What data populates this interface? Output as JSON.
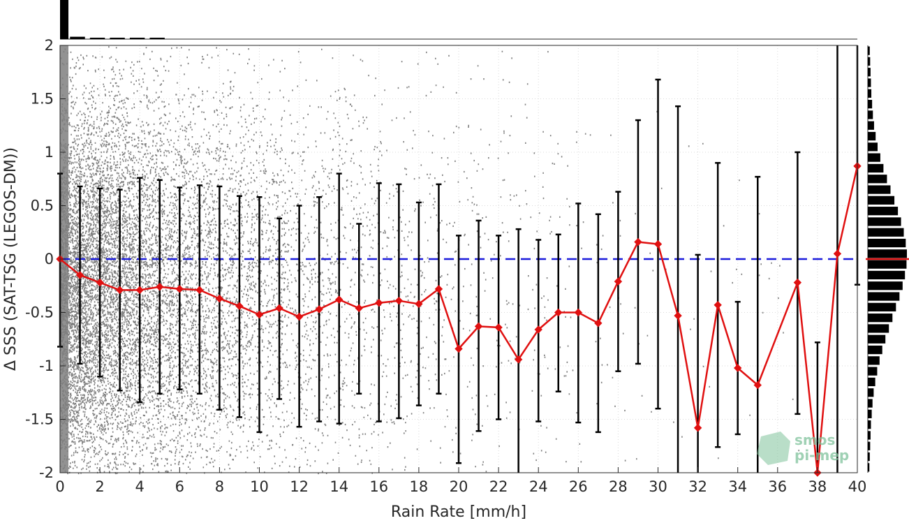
{
  "chart_data": {
    "type": "scatter",
    "title": "",
    "xlabel": "Rain Rate [mm/h]",
    "ylabel": "Δ SSS (SAT-TSG (LEGOS-DM))",
    "xlim": [
      0,
      40
    ],
    "ylim": [
      -2,
      2
    ],
    "x_ticks": [
      "0",
      "2",
      "4",
      "6",
      "8",
      "10",
      "12",
      "14",
      "16",
      "18",
      "20",
      "22",
      "24",
      "26",
      "28",
      "30",
      "32",
      "34",
      "36",
      "38",
      "40"
    ],
    "y_ticks": [
      "2",
      "1.5",
      "1",
      "0.5",
      "0",
      "-0.5",
      "-1",
      "-1.5",
      "-2"
    ],
    "grid": true,
    "zero_line": {
      "y": 0,
      "color": "#1a1adc",
      "style": "dashed"
    },
    "scatter_cloud": {
      "color": "#7f7f7f",
      "description_marker": "dense grey points, densest at low rain rates"
    },
    "mean_series": {
      "color": "#e01010",
      "x": [
        0,
        1,
        2,
        3,
        4,
        5,
        6,
        7,
        8,
        9,
        10,
        11,
        12,
        13,
        14,
        15,
        16,
        17,
        18,
        19,
        20,
        21,
        22,
        23,
        24,
        25,
        26,
        27,
        28,
        29,
        30,
        31,
        32,
        33,
        34,
        35,
        37,
        38,
        39,
        40
      ],
      "y": [
        0,
        -0.15,
        -0.22,
        -0.29,
        -0.29,
        -0.26,
        -0.28,
        -0.29,
        -0.37,
        -0.44,
        -0.52,
        -0.46,
        -0.54,
        -0.47,
        -0.38,
        -0.46,
        -0.41,
        -0.39,
        -0.42,
        -0.28,
        -0.84,
        -0.63,
        -0.64,
        -0.94,
        -0.66,
        -0.5,
        -0.5,
        -0.6,
        -0.21,
        0.16,
        0.14,
        -0.53,
        -1.58,
        -0.43,
        -1.02,
        -1.18,
        -0.22,
        -2.0,
        0.05,
        0.87
      ]
    },
    "error_bars": {
      "color": "#000000",
      "x": [
        0,
        1,
        2,
        3,
        4,
        5,
        6,
        7,
        8,
        9,
        10,
        11,
        12,
        13,
        14,
        15,
        16,
        17,
        18,
        19,
        20,
        21,
        22,
        23,
        24,
        25,
        26,
        27,
        28,
        29,
        30,
        31,
        32,
        33,
        34,
        35,
        37,
        38,
        39,
        40
      ],
      "upper": [
        0.8,
        0.68,
        0.66,
        0.65,
        0.76,
        0.74,
        0.67,
        0.69,
        0.68,
        0.59,
        0.58,
        0.38,
        0.5,
        0.58,
        0.8,
        0.33,
        0.71,
        0.7,
        0.53,
        0.7,
        0.22,
        0.36,
        0.22,
        0.28,
        0.18,
        0.23,
        0.52,
        0.42,
        0.63,
        1.3,
        1.68,
        1.43,
        0.04,
        0.9,
        -0.4,
        0.77,
        1.0,
        -0.78,
        2.0,
        2.0
      ],
      "lower": [
        -0.82,
        -0.98,
        -1.1,
        -1.23,
        -1.34,
        -1.26,
        -1.22,
        -1.26,
        -1.41,
        -1.48,
        -1.62,
        -1.31,
        -1.57,
        -1.52,
        -1.54,
        -1.26,
        -1.52,
        -1.49,
        -1.37,
        -1.26,
        -1.91,
        -1.61,
        -1.5,
        -2.0,
        -1.52,
        -1.24,
        -1.53,
        -1.62,
        -1.05,
        -0.98,
        -1.4,
        -2.0,
        -2.0,
        -1.76,
        -1.64,
        -2.0,
        -1.45,
        -2.0,
        -2.0,
        -0.24
      ]
    },
    "top_histogram": {
      "color": "#000000",
      "bins": [
        0.5,
        1,
        2,
        3,
        4,
        5
      ],
      "relative_counts": [
        1.0,
        0.06,
        0.03,
        0.02,
        0.015,
        0.01
      ]
    },
    "right_histogram": {
      "color": "#000000",
      "median_line_color": "#e01010",
      "median_value": 0,
      "y_centers": [
        1.95,
        1.85,
        1.75,
        1.65,
        1.55,
        1.45,
        1.35,
        1.25,
        1.15,
        1.05,
        0.95,
        0.85,
        0.75,
        0.65,
        0.55,
        0.45,
        0.35,
        0.25,
        0.15,
        0.05,
        -0.05,
        -0.15,
        -0.25,
        -0.35,
        -0.45,
        -0.55,
        -0.65,
        -0.75,
        -0.85,
        -0.95,
        -1.05,
        -1.15,
        -1.25,
        -1.35,
        -1.45,
        -1.55,
        -1.65,
        -1.75,
        -1.85,
        -1.95
      ],
      "relative_counts": [
        0.05,
        0.06,
        0.07,
        0.08,
        0.09,
        0.11,
        0.13,
        0.16,
        0.2,
        0.25,
        0.32,
        0.4,
        0.49,
        0.58,
        0.68,
        0.77,
        0.85,
        0.92,
        0.97,
        1.0,
        0.99,
        0.95,
        0.89,
        0.81,
        0.72,
        0.63,
        0.54,
        0.45,
        0.37,
        0.3,
        0.24,
        0.19,
        0.15,
        0.12,
        0.1,
        0.08,
        0.07,
        0.06,
        0.05,
        0.04
      ]
    }
  },
  "watermark": {
    "line1": "smos",
    "line2": "pi-mep"
  }
}
